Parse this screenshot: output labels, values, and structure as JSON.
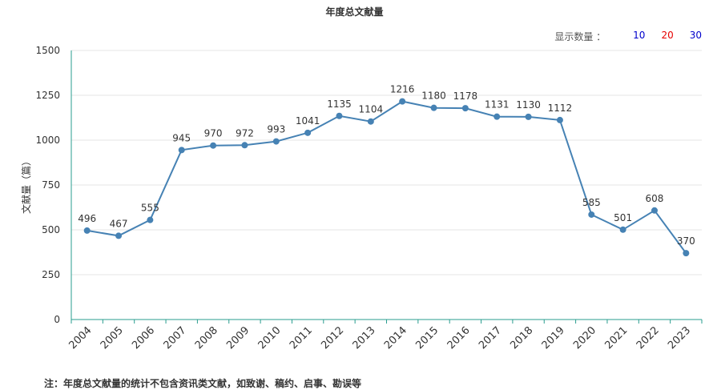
{
  "chart_data": {
    "type": "line",
    "title": "年度总文献量",
    "ylabel": "文献量（篇）",
    "xlabel": "",
    "categories": [
      "2004",
      "2005",
      "2006",
      "2007",
      "2008",
      "2009",
      "2010",
      "2011",
      "2012",
      "2013",
      "2014",
      "2015",
      "2016",
      "2017",
      "2018",
      "2019",
      "2020",
      "2021",
      "2022",
      "2023"
    ],
    "series": [
      {
        "name": "",
        "values": [
          496,
          467,
          555,
          945,
          970,
          972,
          993,
          1041,
          1135,
          1104,
          1216,
          1180,
          1178,
          1131,
          1130,
          1112,
          585,
          501,
          608,
          370
        ]
      }
    ],
    "ylim": [
      0,
      1500
    ],
    "yticks": [
      0,
      250,
      500,
      750,
      1000,
      1250,
      1500
    ],
    "grid": true,
    "data_labels": true,
    "colors": {
      "line": "#4682b4",
      "axis": "#2a9d8f",
      "grid": "#e6e6e6"
    }
  },
  "display_count": {
    "label": "显示数量 ：",
    "options": [
      {
        "text": "10",
        "color": "#0000cc"
      },
      {
        "text": "20",
        "color": "#e60000"
      },
      {
        "text": "30",
        "color": "#0000cc"
      }
    ]
  },
  "note": "注：年度总文献量的统计不包含资讯类文献，如致谢、稿约、启事、勘误等"
}
